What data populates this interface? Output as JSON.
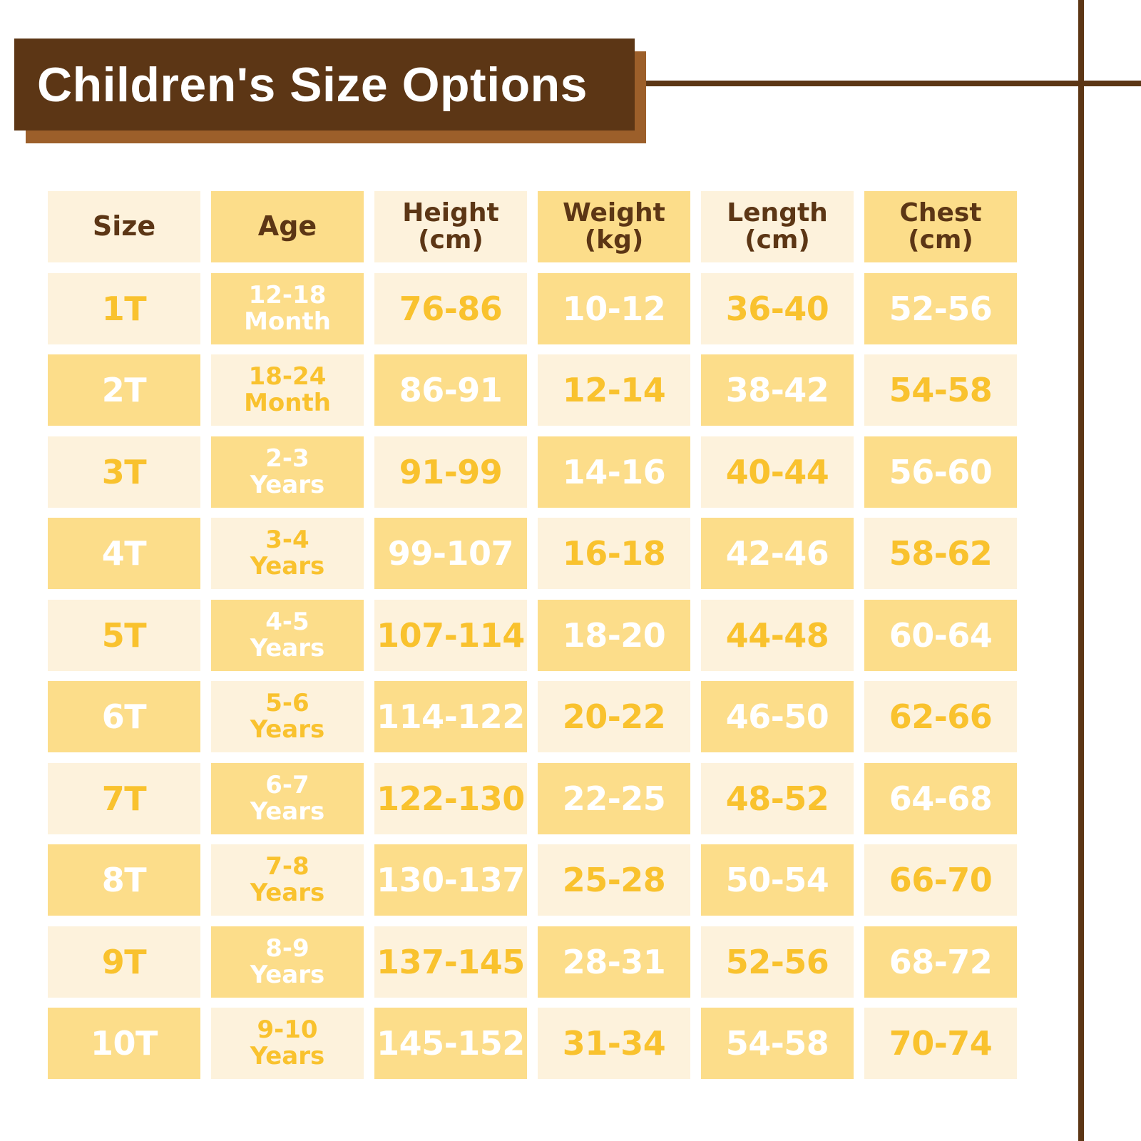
{
  "title": "Children's Size Options",
  "colors": {
    "brown": "#5c3615",
    "brown_light": "#9c5f2a",
    "gold": "#fcdd8a",
    "cream": "#fdf2dc",
    "yellow_text": "#f9c22e",
    "white_text": "#ffffff"
  },
  "headers": [
    "Size",
    "Age",
    "Height (cm)",
    "Weight (kg)",
    "Length (cm)",
    "Chest (cm)"
  ],
  "rows": [
    [
      "1T",
      "12-18 Month",
      "76-86",
      "10-12",
      "36-40",
      "52-56"
    ],
    [
      "2T",
      "18-24 Month",
      "86-91",
      "12-14",
      "38-42",
      "54-58"
    ],
    [
      "3T",
      "2-3 Years",
      "91-99",
      "14-16",
      "40-44",
      "56-60"
    ],
    [
      "4T",
      "3-4 Years",
      "99-107",
      "16-18",
      "42-46",
      "58-62"
    ],
    [
      "5T",
      "4-5 Years",
      "107-114",
      "18-20",
      "44-48",
      "60-64"
    ],
    [
      "6T",
      "5-6 Years",
      "114-122",
      "20-22",
      "46-50",
      "62-66"
    ],
    [
      "7T",
      "6-7 Years",
      "122-130",
      "22-25",
      "48-52",
      "64-68"
    ],
    [
      "8T",
      "7-8 Years",
      "130-137",
      "25-28",
      "50-54",
      "66-70"
    ],
    [
      "9T",
      "8-9 Years",
      "137-145",
      "28-31",
      "52-56",
      "68-72"
    ],
    [
      "10T",
      "9-10 Years",
      "145-152",
      "31-34",
      "54-58",
      "70-74"
    ]
  ]
}
